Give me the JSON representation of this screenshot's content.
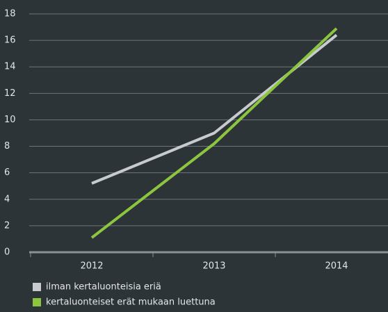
{
  "chart_data": {
    "type": "line",
    "categories": [
      "2012",
      "2013",
      "2014"
    ],
    "series": [
      {
        "name": "ilman kertaluonteisia eriä",
        "color": "#c8cbcd",
        "values": [
          5.2,
          9.0,
          16.4
        ]
      },
      {
        "name": "kertaluonteiset erät mukaan luettuna",
        "color": "#8cc63f",
        "values": [
          1.1,
          8.2,
          16.9
        ]
      }
    ],
    "ylim": [
      0,
      18
    ],
    "yticks": [
      0,
      2,
      4,
      6,
      8,
      10,
      12,
      14,
      16,
      18
    ],
    "grid": true,
    "legend": "bottom"
  }
}
